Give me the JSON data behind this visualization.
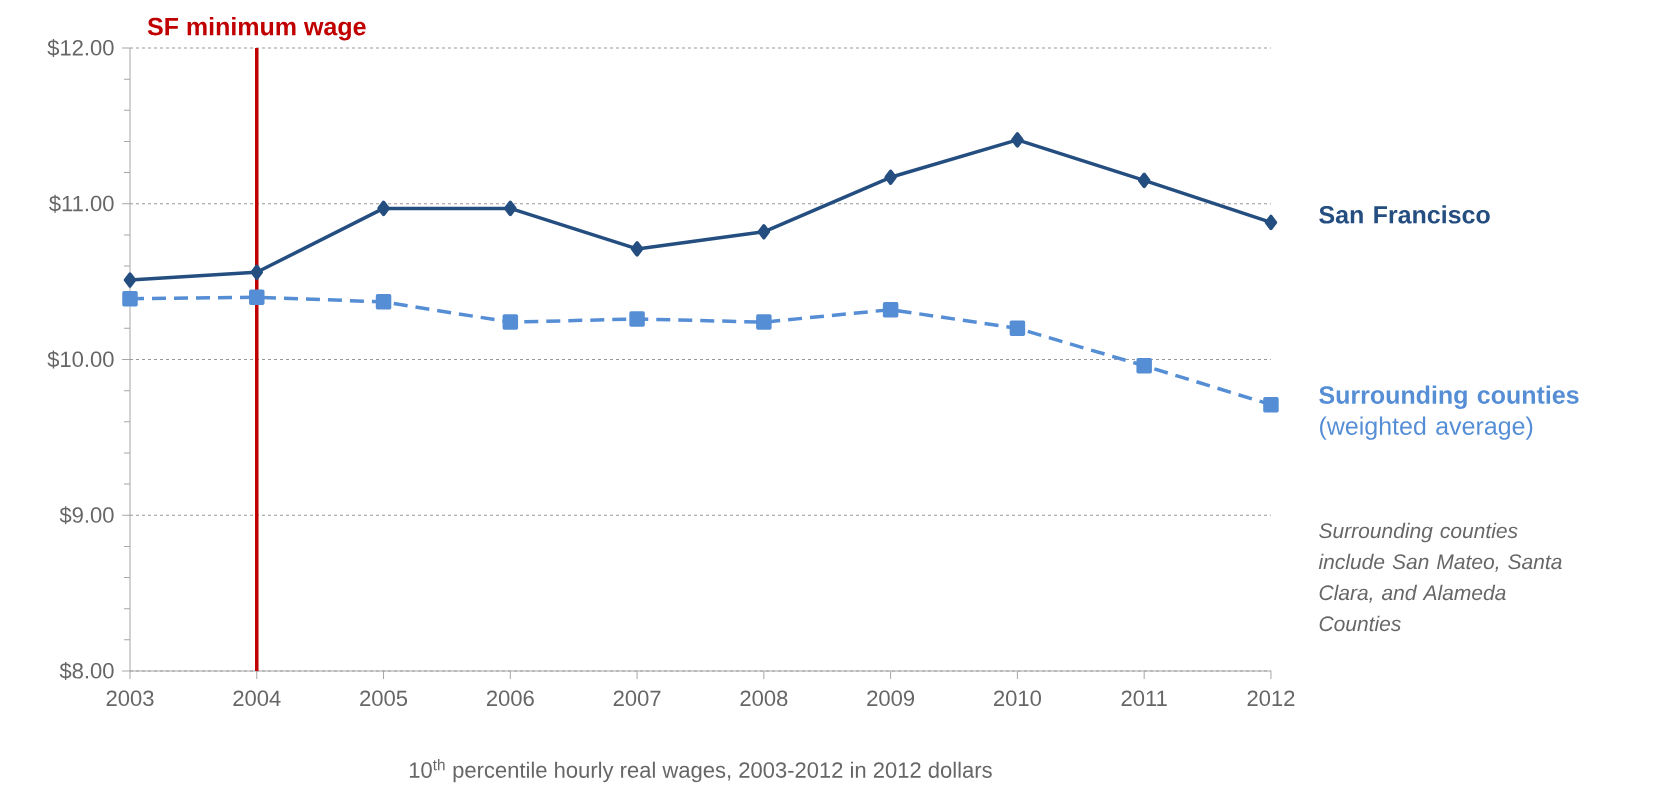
{
  "chart_data": {
    "type": "line",
    "xlabel": "10$^{th}$ percentile hourly real wages, 2003-2012 in 2012 dollars",
    "x": [
      2003,
      2004,
      2005,
      2006,
      2007,
      2008,
      2009,
      2010,
      2011,
      2012
    ],
    "xlim": [
      2003,
      2012
    ],
    "xticks": [
      2003,
      2004,
      2005,
      2006,
      2007,
      2008,
      2009,
      2010,
      2011,
      2012
    ],
    "ylim": [
      8,
      12
    ],
    "yticks": [
      {
        "value": 8,
        "label": "$8.00"
      },
      {
        "value": 9,
        "label": "$9.00"
      },
      {
        "value": 10,
        "label": "$10.00"
      },
      {
        "value": 11,
        "label": "$11.00"
      },
      {
        "value": 12,
        "label": "$12.00"
      }
    ],
    "grid": "y",
    "legend": false,
    "series": [
      {
        "name": "San Francisco",
        "color": "#254e80",
        "marker": "diamond",
        "line_style": "solid",
        "values": [
          10.51,
          10.56,
          10.97,
          10.97,
          10.71,
          10.82,
          11.17,
          11.41,
          11.15,
          10.88
        ]
      },
      {
        "name": "**Surrounding counties** (weighted average)",
        "color": "#558ed5",
        "marker": "square",
        "line_style": "dashed",
        "values": [
          10.39,
          10.4,
          10.37,
          10.24,
          10.26,
          10.24,
          10.32,
          10.2,
          9.96,
          9.71
        ]
      }
    ],
    "ref_lines": [
      {
        "axis": "x",
        "value": 2004,
        "label": "SF minimum wage",
        "color": "#c00000"
      }
    ],
    "annotations": [
      "Surrounding counties include San Mateo, Santa Clara, and Alameda Counties"
    ]
  }
}
